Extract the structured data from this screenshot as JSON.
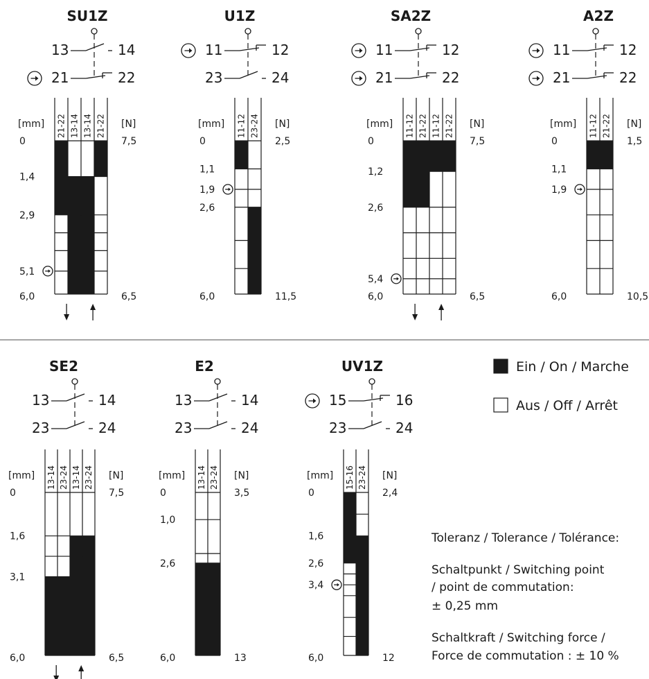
{
  "legend": {
    "on": "Ein / On / Marche",
    "off": "Aus / Off / Arrêt",
    "on_color": "#1a1a1a",
    "off_color": "#ffffff"
  },
  "notes": {
    "line1": "Toleranz / Tolerance / Tolérance:",
    "line2": "Schaltpunkt / Switching point",
    "line3": "/ point de commutation:",
    "line4": "± 0,25 mm",
    "line5": "Schaltkraft / Switching force /",
    "line6": "Force de commutation : ± 10 %"
  },
  "diagrams": [
    {
      "title": "SU1Z",
      "contacts": [
        {
          "left": "13",
          "right": "14",
          "type": "NO",
          "direct": false
        },
        {
          "left": "21",
          "right": "22",
          "type": "NC",
          "direct": true
        }
      ],
      "mm_unit": "[mm]",
      "n_unit": "[N]",
      "columns": [
        "21-22",
        "13-14",
        "13-14",
        "21-22"
      ],
      "rows_mm": [
        0,
        1.4,
        2.9,
        3.6,
        4.3,
        5.1,
        6.0
      ],
      "mm_labels": [
        {
          "v": 0,
          "t": "0"
        },
        {
          "v": 1.4,
          "t": "1,4"
        },
        {
          "v": 2.9,
          "t": "2,9"
        },
        {
          "v": 5.1,
          "t": "5,1",
          "direct": true
        },
        {
          "v": 6.0,
          "t": "6,0"
        }
      ],
      "n_start": "7,5",
      "n_end": "6,5",
      "on_ranges": [
        [
          [
            0,
            2.9
          ]
        ],
        [
          [
            1.4,
            6.0
          ]
        ],
        [
          [
            1.4,
            6.0
          ]
        ],
        [
          [
            0,
            1.4
          ]
        ]
      ],
      "arrows": true
    },
    {
      "title": "U1Z",
      "contacts": [
        {
          "left": "11",
          "right": "12",
          "type": "NC",
          "direct": true
        },
        {
          "left": "23",
          "right": "24",
          "type": "NO",
          "direct": false
        }
      ],
      "mm_unit": "[mm]",
      "n_unit": "[N]",
      "columns": [
        "11-12",
        "23-24"
      ],
      "rows_mm": [
        0,
        1.1,
        1.9,
        2.6,
        3.9,
        5.0,
        6.0
      ],
      "mm_labels": [
        {
          "v": 0,
          "t": "0"
        },
        {
          "v": 1.1,
          "t": "1,1"
        },
        {
          "v": 1.9,
          "t": "1,9",
          "direct": true
        },
        {
          "v": 2.6,
          "t": "2,6"
        },
        {
          "v": 6.0,
          "t": "6,0"
        }
      ],
      "n_start": "2,5",
      "n_end": "11,5",
      "on_ranges": [
        [
          [
            0,
            1.1
          ]
        ],
        [
          [
            2.6,
            6.0
          ]
        ]
      ],
      "arrows": false
    },
    {
      "title": "SA2Z",
      "contacts": [
        {
          "left": "11",
          "right": "12",
          "type": "NC",
          "direct": true
        },
        {
          "left": "21",
          "right": "22",
          "type": "NC",
          "direct": true
        }
      ],
      "mm_unit": "[mm]",
      "n_unit": "[N]",
      "columns": [
        "11-12",
        "21-22",
        "11-12",
        "21-22"
      ],
      "rows_mm": [
        0,
        1.2,
        2.6,
        3.6,
        4.6,
        5.4,
        6.0
      ],
      "mm_labels": [
        {
          "v": 0,
          "t": "0"
        },
        {
          "v": 1.2,
          "t": "1,2"
        },
        {
          "v": 2.6,
          "t": "2,6"
        },
        {
          "v": 5.4,
          "t": "5,4",
          "direct": true
        },
        {
          "v": 6.0,
          "t": "6,0"
        }
      ],
      "n_start": "7,5",
      "n_end": "6,5",
      "on_ranges": [
        [
          [
            0,
            2.6
          ]
        ],
        [
          [
            0,
            2.6
          ]
        ],
        [
          [
            0,
            1.2
          ]
        ],
        [
          [
            0,
            1.2
          ]
        ]
      ],
      "arrows": true
    },
    {
      "title": "A2Z",
      "contacts": [
        {
          "left": "11",
          "right": "12",
          "type": "NC",
          "direct": true
        },
        {
          "left": "21",
          "right": "22",
          "type": "NC",
          "direct": true
        }
      ],
      "mm_unit": "[mm]",
      "n_unit": "[N]",
      "columns": [
        "11-12",
        "21-22"
      ],
      "rows_mm": [
        0,
        1.1,
        1.9,
        2.9,
        3.9,
        5.0,
        6.0
      ],
      "mm_labels": [
        {
          "v": 0,
          "t": "0"
        },
        {
          "v": 1.1,
          "t": "1,1"
        },
        {
          "v": 1.9,
          "t": "1,9",
          "direct": true
        },
        {
          "v": 6.0,
          "t": "6,0"
        }
      ],
      "n_start": "1,5",
      "n_end": "10,5",
      "on_ranges": [
        [
          [
            0,
            1.1
          ]
        ],
        [
          [
            0,
            1.1
          ]
        ]
      ],
      "arrows": false
    },
    {
      "title": "SE2",
      "contacts": [
        {
          "left": "13",
          "right": "14",
          "type": "NO",
          "direct": false
        },
        {
          "left": "23",
          "right": "24",
          "type": "NO",
          "direct": false
        }
      ],
      "mm_unit": "[mm]",
      "n_unit": "[N]",
      "columns": [
        "13-14",
        "23-24",
        "13-14",
        "23-24"
      ],
      "rows_mm": [
        0,
        1.6,
        2.35,
        3.1,
        6.0
      ],
      "mm_labels": [
        {
          "v": 0,
          "t": "0"
        },
        {
          "v": 1.6,
          "t": "1,6"
        },
        {
          "v": 3.1,
          "t": "3,1"
        },
        {
          "v": 6.0,
          "t": "6,0"
        }
      ],
      "n_start": "7,5",
      "n_end": "6,5",
      "on_ranges": [
        [
          [
            3.1,
            6.0
          ]
        ],
        [
          [
            3.1,
            6.0
          ]
        ],
        [
          [
            1.6,
            6.0
          ]
        ],
        [
          [
            1.6,
            6.0
          ]
        ]
      ],
      "arrows": true
    },
    {
      "title": "E2",
      "contacts": [
        {
          "left": "13",
          "right": "14",
          "type": "NO",
          "direct": false
        },
        {
          "left": "23",
          "right": "24",
          "type": "NO",
          "direct": false
        }
      ],
      "mm_unit": "[mm]",
      "n_unit": "[N]",
      "columns": [
        "13-14",
        "23-24"
      ],
      "rows_mm": [
        0,
        1.0,
        2.25,
        2.6,
        6.0
      ],
      "mm_labels": [
        {
          "v": 0,
          "t": "0"
        },
        {
          "v": 1.0,
          "t": "1,0"
        },
        {
          "v": 2.6,
          "t": "2,6"
        },
        {
          "v": 6.0,
          "t": "6,0"
        }
      ],
      "n_start": "3,5",
      "n_end": "13",
      "on_ranges": [
        [
          [
            2.6,
            6.0
          ]
        ],
        [
          [
            2.6,
            6.0
          ]
        ]
      ],
      "arrows": false
    },
    {
      "title": "UV1Z",
      "contacts": [
        {
          "left": "15",
          "right": "16",
          "type": "NC",
          "direct": true
        },
        {
          "left": "23",
          "right": "24",
          "type": "NO",
          "direct": false
        }
      ],
      "mm_unit": "[mm]",
      "n_unit": "[N]",
      "columns": [
        "15-16",
        "23-24"
      ],
      "rows_mm": [
        0,
        0.8,
        1.6,
        2.6,
        3.0,
        3.4,
        3.8,
        4.6,
        5.3,
        6.0
      ],
      "mm_labels": [
        {
          "v": 0,
          "t": "0"
        },
        {
          "v": 1.6,
          "t": "1,6"
        },
        {
          "v": 2.6,
          "t": "2,6"
        },
        {
          "v": 3.4,
          "t": "3,4",
          "direct": true
        },
        {
          "v": 6.0,
          "t": "6,0"
        }
      ],
      "n_start": "2,4",
      "n_end": "12",
      "on_ranges": [
        [
          [
            0,
            2.6
          ]
        ],
        [
          [
            1.6,
            6.0
          ]
        ]
      ],
      "arrows": false
    }
  ]
}
